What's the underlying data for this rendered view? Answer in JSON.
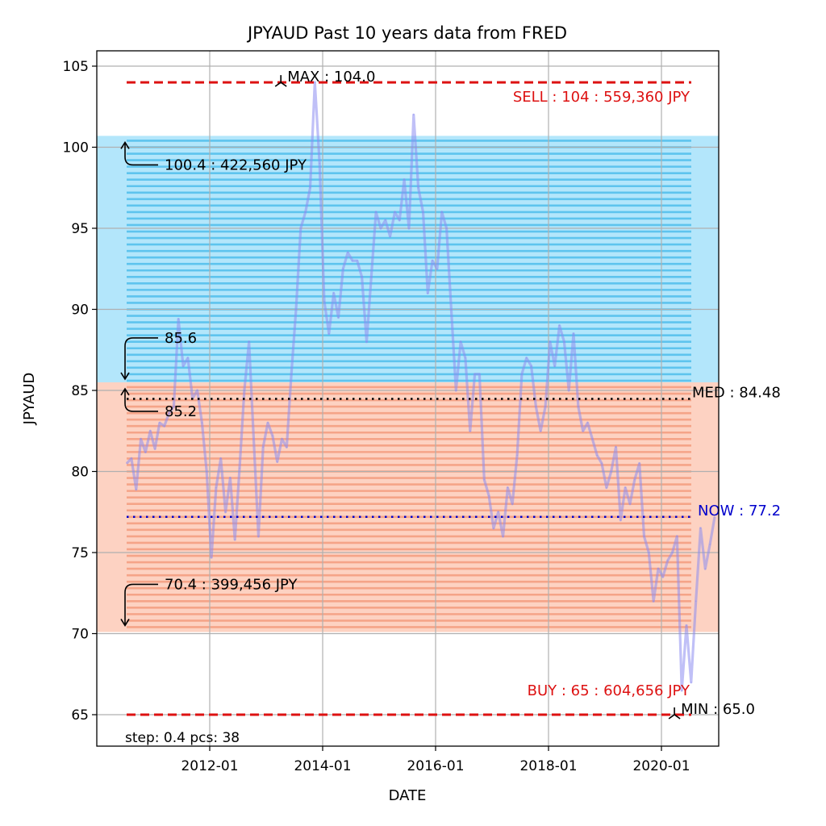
{
  "chart_data": {
    "type": "line",
    "title": "JPYAUD Past 10 years data from FRED",
    "xlabel": "DATE",
    "ylabel": "JPYAUD",
    "xlim": [
      2010.0,
      2021.2
    ],
    "ylim": [
      63.0,
      106.0
    ],
    "grid": true,
    "x_ticks": [
      {
        "value": 2012.0,
        "label": "2012-01"
      },
      {
        "value": 2014.0,
        "label": "2014-01"
      },
      {
        "value": 2016.0,
        "label": "2016-01"
      },
      {
        "value": 2018.0,
        "label": "2018-01"
      },
      {
        "value": 2020.0,
        "label": "2020-01"
      }
    ],
    "y_ticks": [
      {
        "value": 65,
        "label": "65"
      },
      {
        "value": 70,
        "label": "70"
      },
      {
        "value": 75,
        "label": "75"
      },
      {
        "value": 80,
        "label": "80"
      },
      {
        "value": 85,
        "label": "85"
      },
      {
        "value": 90,
        "label": "90"
      },
      {
        "value": 95,
        "label": "95"
      },
      {
        "value": 100,
        "label": "100"
      },
      {
        "value": 105,
        "label": "105"
      }
    ],
    "series": [
      {
        "name": "JPYAUD",
        "color": "#8c8cf0",
        "x_start": 2010.53,
        "x_step": 0.0833,
        "values": [
          80.5,
          80.8,
          78.9,
          82.0,
          81.2,
          82.5,
          81.4,
          83.0,
          82.8,
          83.6,
          84.0,
          89.4,
          86.5,
          87.0,
          84.5,
          85.0,
          83.0,
          80.0,
          74.7,
          79.0,
          80.8,
          77.5,
          79.6,
          75.8,
          80.2,
          85.0,
          88.0,
          82.0,
          76.0,
          81.5,
          83.0,
          82.2,
          80.6,
          82.0,
          81.5,
          86.0,
          90.0,
          95.0,
          96.0,
          97.5,
          104.0,
          99.0,
          90.5,
          88.5,
          91.0,
          89.5,
          92.5,
          93.5,
          93.0,
          93.0,
          92.0,
          88.0,
          92.0,
          96.0,
          95.0,
          95.5,
          94.5,
          96.0,
          95.5,
          98.0,
          95.0,
          102.0,
          97.5,
          96.0,
          91.0,
          93.0,
          92.5,
          96.0,
          95.0,
          90.0,
          85.0,
          88.0,
          87.0,
          82.5,
          86.0,
          86.0,
          79.5,
          78.5,
          76.5,
          77.5,
          76.0,
          79.0,
          78.0,
          81.0,
          86.0,
          87.0,
          86.5,
          84.0,
          82.5,
          84.0,
          88.0,
          86.5,
          89.0,
          88.0,
          85.0,
          88.5,
          84.0,
          82.5,
          83.0,
          82.0,
          81.0,
          80.5,
          79.0,
          80.0,
          81.5,
          77.0,
          79.0,
          78.0,
          79.5,
          80.5,
          76.0,
          75.0,
          72.0,
          74.0,
          73.5,
          74.5,
          75.0,
          76.0,
          66.5,
          70.5,
          67.0,
          72.0,
          76.5,
          74.0,
          75.5,
          77.2
        ]
      }
    ],
    "bands": [
      {
        "name": "sell-zone",
        "from": 85.6,
        "to": 100.4,
        "color": "#b3e6fb",
        "line_color": "#5ec4ee"
      },
      {
        "name": "buy-zone",
        "from": 70.4,
        "to": 85.2,
        "color": "#fdd2c2",
        "line_color": "#f5a488"
      }
    ],
    "grid_lines_step": 0.4,
    "reference_lines": [
      {
        "name": "sell",
        "value": 104,
        "color": "#dd1111",
        "style": "dashed",
        "label": "SELL : 104 : 559,360 JPY"
      },
      {
        "name": "buy",
        "value": 65,
        "color": "#dd1111",
        "style": "dashed",
        "label": "BUY : 65 : 604,656 JPY"
      },
      {
        "name": "median",
        "value": 84.48,
        "color": "#000000",
        "style": "dotted",
        "label": "MED : 84.48"
      },
      {
        "name": "now",
        "value": 77.2,
        "color": "#0000cc",
        "style": "dotted",
        "label": "NOW : 77.2"
      }
    ],
    "annotations": [
      {
        "name": "max",
        "x": 2013.26,
        "y": 104.0,
        "label": "MAX : 104.0"
      },
      {
        "name": "min",
        "x": 2020.23,
        "y": 65.0,
        "label": "MIN : 65.0"
      },
      {
        "name": "sell-top",
        "y": 100.4,
        "label": "100.4 : 422,560 JPY",
        "direction": "up"
      },
      {
        "name": "sell-bottom",
        "y": 85.6,
        "label": "85.6",
        "direction": "down"
      },
      {
        "name": "buy-top",
        "y": 85.2,
        "label": "85.2",
        "direction": "up"
      },
      {
        "name": "buy-bottom",
        "y": 70.4,
        "label": "70.4 : 399,456 JPY",
        "direction": "down"
      }
    ],
    "footnote": "step: 0.4 pcs: 38"
  }
}
